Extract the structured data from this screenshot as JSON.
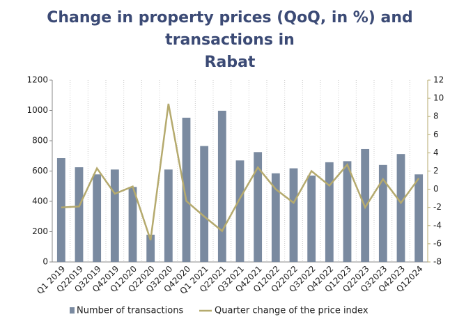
{
  "chart_data": {
    "type": "bar_line",
    "title": [
      "Change in property prices (QoQ, in %) and",
      "transactions in",
      "Rabat"
    ],
    "categories": [
      "Q1 2019",
      "Q22019",
      "Q32019",
      "Q42019",
      "Q12020",
      "Q22020",
      "Q32020",
      "Q42020",
      "Q1 2021",
      "Q22021",
      "Q32021",
      "Q42021",
      "Q12022",
      "Q22022",
      "Q32022",
      "Q42022",
      "Q12023",
      "Q22023",
      "Q32023",
      "Q42023",
      "Q12024"
    ],
    "series": [
      {
        "name": "Number of transactions",
        "color": "#7a8aa0",
        "type": "bar",
        "values": [
          685,
          625,
          578,
          610,
          495,
          180,
          610,
          952,
          765,
          998,
          670,
          725,
          585,
          618,
          570,
          658,
          665,
          745,
          640,
          712,
          578
        ]
      },
      {
        "name": "Quarter change of the price index",
        "color": "#b5aa6e",
        "type": "line",
        "axis": "y2",
        "values": [
          -2.0,
          -1.9,
          2.3,
          -0.5,
          0.3,
          -5.6,
          9.4,
          -1.3,
          -3.0,
          -4.6,
          -1.0,
          2.4,
          0.0,
          -1.5,
          2.0,
          0.4,
          2.7,
          -2.0,
          1.1,
          -1.5,
          1.2
        ]
      }
    ],
    "ylim": [
      0,
      1200
    ],
    "yticks": [
      0,
      200,
      400,
      600,
      800,
      1000,
      1200
    ],
    "y2lim": [
      -8,
      12
    ],
    "y2ticks": [
      -8,
      -6,
      -4,
      -2,
      0,
      2,
      4,
      6,
      8,
      10,
      12
    ]
  }
}
